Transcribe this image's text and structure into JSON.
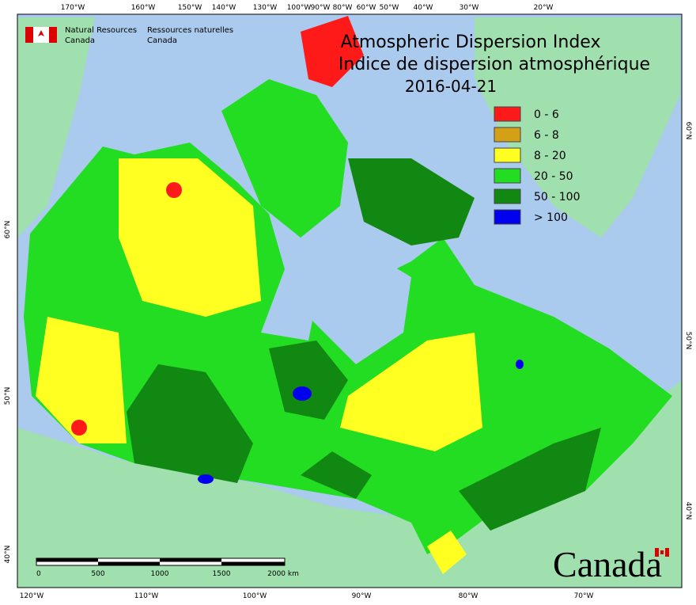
{
  "header": {
    "agency_en_1": "Natural Resources",
    "agency_en_2": "Canada",
    "agency_fr_1": "Ressources naturelles",
    "agency_fr_2": "Canada",
    "title_en": "Atmospheric Dispersion Index",
    "title_fr": "Indice de dispersion atmosphérique",
    "date": "2016-04-21"
  },
  "legend": [
    {
      "label": "0 - 6",
      "color": "#ff1a1a"
    },
    {
      "label": "6 - 8",
      "color": "#d4a017"
    },
    {
      "label": "8 - 20",
      "color": "#ffff22"
    },
    {
      "label": "20 - 50",
      "color": "#22dd22"
    },
    {
      "label": "50 - 100",
      "color": "#118811"
    },
    {
      "label": "> 100",
      "color": "#0000ee"
    }
  ],
  "graticule": {
    "top": [
      "170°W",
      "160°W",
      "150°W",
      "140°W",
      "130°W",
      "100°W",
      "90°W",
      "80°W",
      "60°W",
      "50°W",
      "40°W",
      "30°W",
      "20°W"
    ],
    "bottom": [
      "120°W",
      "110°W",
      "100°W",
      "90°W",
      "80°W",
      "70°W"
    ],
    "left": [
      "60°N",
      "50°N",
      "40°N"
    ],
    "right": [
      "60°N",
      "50°N",
      "40°N"
    ]
  },
  "scale": {
    "ticks": [
      "0",
      "500",
      "1000",
      "1500",
      "2000 km"
    ]
  },
  "wordmark": "Canada"
}
